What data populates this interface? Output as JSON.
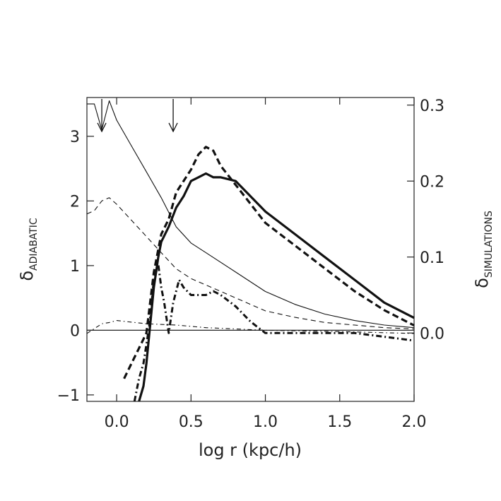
{
  "chart_data": {
    "type": "line",
    "xlabel": "log r (kpc/h)",
    "ylabel_left": {
      "symbol": "δ",
      "subscript": "ADIABATIC"
    },
    "ylabel_right": {
      "symbol": "δ",
      "subscript": "SIMULATIONS"
    },
    "xlim": [
      -0.2,
      2.0
    ],
    "ylim_left": [
      -1.1,
      3.6
    ],
    "ylim_right": [
      -0.09,
      0.31
    ],
    "x_ticks": [
      {
        "v": 0.0,
        "label": "0.0"
      },
      {
        "v": 0.5,
        "label": "0.5"
      },
      {
        "v": 1.0,
        "label": "1.0"
      },
      {
        "v": 1.5,
        "label": "1.5"
      },
      {
        "v": 2.0,
        "label": "2.0"
      }
    ],
    "y_left_ticks": [
      {
        "v": -1,
        "label": "−1"
      },
      {
        "v": 0,
        "label": "0"
      },
      {
        "v": 1,
        "label": "1"
      },
      {
        "v": 2,
        "label": "2"
      },
      {
        "v": 3,
        "label": "3"
      }
    ],
    "y_right_ticks": [
      {
        "v": 0.0,
        "label": "0.0"
      },
      {
        "v": 0.1,
        "label": "0.1"
      },
      {
        "v": 0.2,
        "label": "0.2"
      },
      {
        "v": 0.3,
        "label": "0.3"
      }
    ],
    "zero_line": 0,
    "arrows": [
      {
        "x": -0.1
      },
      {
        "x": 0.38
      }
    ],
    "series": [
      {
        "axis": "left",
        "style": "thin-solid",
        "x": [
          -0.2,
          -0.15,
          -0.1,
          -0.05,
          0.0,
          0.1,
          0.2,
          0.3,
          0.4,
          0.5,
          0.6,
          0.8,
          1.0,
          1.2,
          1.4,
          1.6,
          1.8,
          2.0
        ],
        "y": [
          3.5,
          3.5,
          3.1,
          3.55,
          3.25,
          2.85,
          2.45,
          2.05,
          1.6,
          1.35,
          1.2,
          0.9,
          0.6,
          0.4,
          0.25,
          0.15,
          0.08,
          0.04
        ]
      },
      {
        "axis": "left",
        "style": "thin-dashed",
        "x": [
          -0.2,
          -0.15,
          -0.1,
          -0.05,
          0.0,
          0.1,
          0.2,
          0.3,
          0.4,
          0.5,
          0.6,
          0.8,
          1.0,
          1.2,
          1.4,
          1.6,
          1.8,
          2.0
        ],
        "y": [
          1.8,
          1.85,
          2.0,
          2.05,
          1.95,
          1.7,
          1.45,
          1.2,
          0.95,
          0.8,
          0.7,
          0.5,
          0.3,
          0.2,
          0.12,
          0.08,
          0.04,
          0.02
        ]
      },
      {
        "axis": "left",
        "style": "thin-dashdot",
        "x": [
          -0.2,
          -0.1,
          -0.05,
          0.0,
          0.2,
          0.4,
          0.6,
          0.8,
          1.0,
          1.5,
          2.0
        ],
        "y": [
          -0.05,
          0.1,
          0.12,
          0.15,
          0.1,
          0.08,
          0.04,
          0.02,
          0.0,
          -0.02,
          -0.05
        ]
      },
      {
        "axis": "right",
        "style": "thick-solid",
        "x": [
          0.15,
          0.18,
          0.2,
          0.22,
          0.25,
          0.28,
          0.3,
          0.35,
          0.4,
          0.45,
          0.5,
          0.55,
          0.6,
          0.65,
          0.7,
          0.8,
          0.9,
          1.0,
          1.2,
          1.4,
          1.6,
          1.8,
          2.0
        ],
        "y": [
          -0.1,
          -0.07,
          -0.04,
          0.0,
          0.06,
          0.1,
          0.12,
          0.14,
          0.165,
          0.18,
          0.2,
          0.205,
          0.21,
          0.205,
          0.205,
          0.2,
          0.18,
          0.16,
          0.13,
          0.1,
          0.07,
          0.04,
          0.02
        ]
      },
      {
        "axis": "right",
        "style": "thick-dashed",
        "x": [
          0.05,
          0.1,
          0.15,
          0.2,
          0.25,
          0.3,
          0.35,
          0.4,
          0.45,
          0.5,
          0.55,
          0.6,
          0.65,
          0.7,
          0.8,
          0.9,
          1.0,
          1.2,
          1.4,
          1.6,
          1.8,
          2.0
        ],
        "y": [
          -0.06,
          -0.04,
          -0.02,
          0.0,
          0.08,
          0.13,
          0.15,
          0.185,
          0.2,
          0.215,
          0.235,
          0.245,
          0.24,
          0.22,
          0.195,
          0.17,
          0.145,
          0.115,
          0.085,
          0.055,
          0.03,
          0.01
        ]
      },
      {
        "axis": "right",
        "style": "thick-dashdot",
        "x": [
          0.12,
          0.15,
          0.18,
          0.22,
          0.25,
          0.28,
          0.3,
          0.32,
          0.35,
          0.38,
          0.42,
          0.45,
          0.5,
          0.55,
          0.6,
          0.65,
          0.7,
          0.8,
          0.9,
          1.0,
          1.2,
          1.4,
          1.6,
          1.8,
          2.0
        ],
        "y": [
          -0.09,
          -0.06,
          -0.04,
          0.01,
          0.07,
          0.09,
          0.06,
          0.04,
          0.0,
          0.04,
          0.07,
          0.06,
          0.05,
          0.05,
          0.05,
          0.055,
          0.05,
          0.035,
          0.015,
          0.0,
          0.0,
          0.0,
          0.0,
          -0.005,
          -0.01
        ]
      }
    ]
  }
}
